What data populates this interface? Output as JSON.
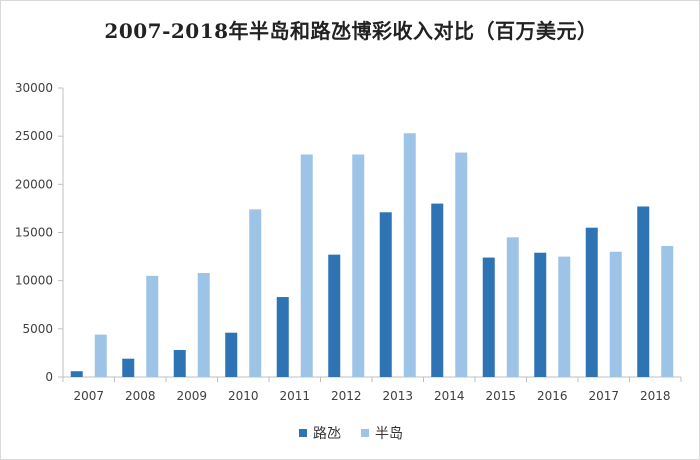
{
  "chart_data": {
    "type": "bar",
    "title": "2007-2018年半岛和路氹博彩收入对比（百万美元）",
    "categories": [
      "2007",
      "2008",
      "2009",
      "2010",
      "2011",
      "2012",
      "2013",
      "2014",
      "2015",
      "2016",
      "2017",
      "2018"
    ],
    "series": [
      {
        "name": "路氹",
        "color": "#2e74b5",
        "values": [
          600,
          1900,
          2800,
          4600,
          8300,
          12700,
          17100,
          18000,
          12400,
          12900,
          15500,
          17700
        ]
      },
      {
        "name": "半岛",
        "color": "#9dc3e6",
        "values": [
          4400,
          10500,
          10800,
          17400,
          23100,
          23100,
          25300,
          23300,
          14500,
          12500,
          13000,
          13600
        ]
      }
    ],
    "ylim": [
      0,
      30000
    ],
    "yticks": [
      "0",
      "5000",
      "10000",
      "15000",
      "20000",
      "25000",
      "30000"
    ],
    "grid": false,
    "legend_position": "bottom"
  }
}
